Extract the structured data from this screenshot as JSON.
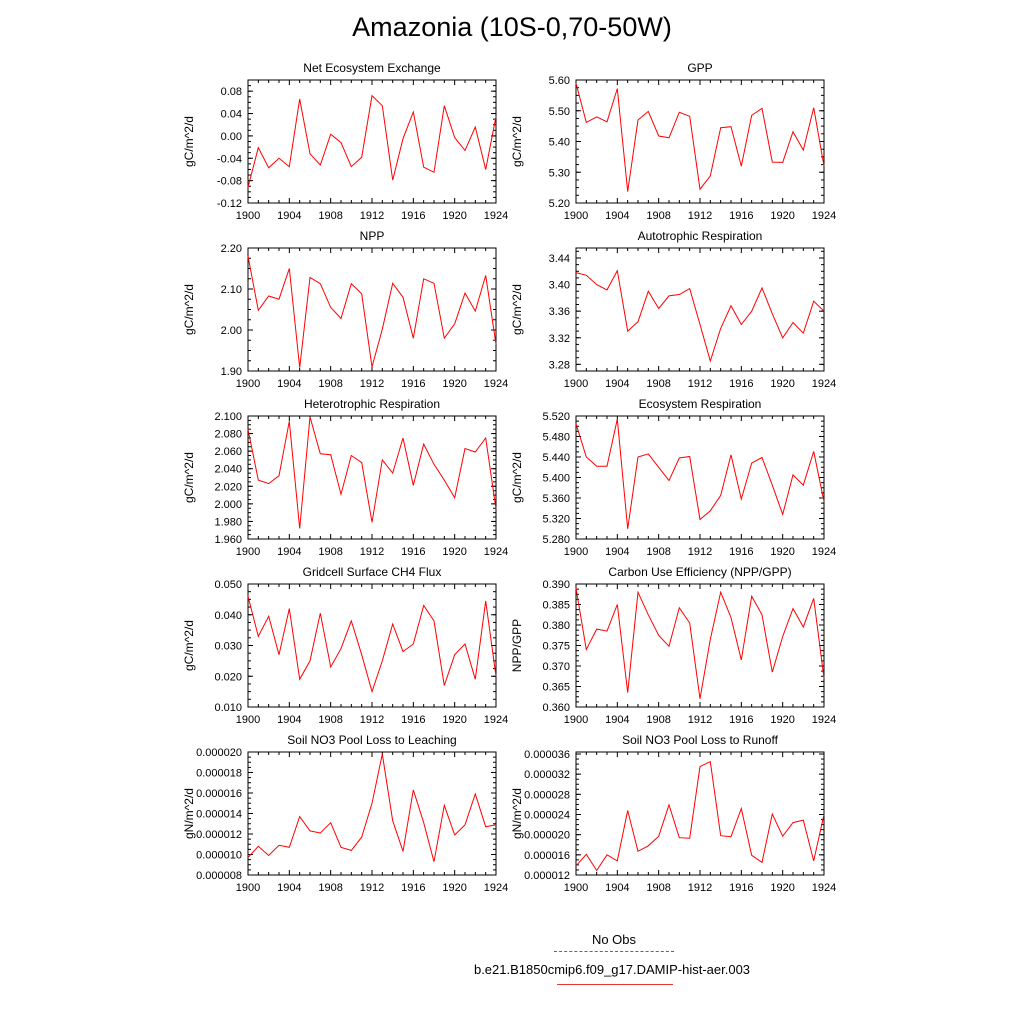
{
  "figure_title": "Amazonia (10S-0,70-50W)",
  "legend": {
    "entries": [
      {
        "label": "No Obs",
        "color": "#5555ee",
        "dash": true
      },
      {
        "label": "b.e21.B1850cmip6.f09_g17.DAMIP-hist-aer.003",
        "color": "#ee3333",
        "dash": false
      }
    ]
  },
  "chart_data": [
    {
      "type": "line",
      "title": "Net Ecosystem Exchange",
      "ylabel": "gC/m^2/d",
      "xlim": [
        1900,
        1924
      ],
      "ylim": [
        -0.12,
        0.1
      ],
      "xticks": [
        "1900",
        "1904",
        "1908",
        "1912",
        "1916",
        "1920",
        "1924"
      ],
      "yticks": [
        "-0.12",
        "-0.08",
        "-0.04",
        "0.00",
        "0.04",
        "0.08"
      ],
      "series": [
        {
          "color": "#ff0000",
          "x": [
            1900,
            1901,
            1902,
            1903,
            1904,
            1905,
            1906,
            1907,
            1908,
            1909,
            1910,
            1911,
            1912,
            1913,
            1914,
            1915,
            1916,
            1917,
            1918,
            1919,
            1920,
            1921,
            1922,
            1923,
            1924
          ],
          "y": [
            -0.092,
            -0.021,
            -0.057,
            -0.04,
            -0.055,
            0.066,
            -0.032,
            -0.052,
            0.003,
            -0.012,
            -0.055,
            -0.038,
            0.072,
            0.054,
            -0.079,
            -0.005,
            0.043,
            -0.056,
            -0.065,
            0.054,
            -0.003,
            -0.026,
            0.016,
            -0.06,
            0.035
          ]
        }
      ]
    },
    {
      "type": "line",
      "title": "GPP",
      "ylabel": "gC/m^2/d",
      "xlim": [
        1900,
        1924
      ],
      "ylim": [
        5.2,
        5.6
      ],
      "xticks": [
        "1900",
        "1904",
        "1908",
        "1912",
        "1916",
        "1920",
        "1924"
      ],
      "yticks": [
        "5.20",
        "5.30",
        "5.40",
        "5.50",
        "5.60"
      ],
      "series": [
        {
          "color": "#ff0000",
          "x": [
            1900,
            1901,
            1902,
            1903,
            1904,
            1905,
            1906,
            1907,
            1908,
            1909,
            1910,
            1911,
            1912,
            1913,
            1914,
            1915,
            1916,
            1917,
            1918,
            1919,
            1920,
            1921,
            1922,
            1923,
            1924
          ],
          "y": [
            5.59,
            5.462,
            5.48,
            5.464,
            5.572,
            5.237,
            5.47,
            5.498,
            5.418,
            5.412,
            5.495,
            5.482,
            5.245,
            5.288,
            5.445,
            5.448,
            5.32,
            5.485,
            5.508,
            5.333,
            5.332,
            5.432,
            5.372,
            5.51,
            5.32
          ]
        }
      ]
    },
    {
      "type": "line",
      "title": "NPP",
      "ylabel": "gC/m^2/d",
      "xlim": [
        1900,
        1924
      ],
      "ylim": [
        1.9,
        2.2
      ],
      "xticks": [
        "1900",
        "1904",
        "1908",
        "1912",
        "1916",
        "1920",
        "1924"
      ],
      "yticks": [
        "1.90",
        "2.00",
        "2.10",
        "2.20"
      ],
      "series": [
        {
          "color": "#ff0000",
          "x": [
            1900,
            1901,
            1902,
            1903,
            1904,
            1905,
            1906,
            1907,
            1908,
            1909,
            1910,
            1911,
            1912,
            1913,
            1914,
            1915,
            1916,
            1917,
            1918,
            1919,
            1920,
            1921,
            1922,
            1923,
            1924
          ],
          "y": [
            2.18,
            2.048,
            2.083,
            2.075,
            2.15,
            1.908,
            2.128,
            2.113,
            2.055,
            2.028,
            2.113,
            2.088,
            1.91,
            2.002,
            2.114,
            2.08,
            1.98,
            2.125,
            2.114,
            1.98,
            2.015,
            2.09,
            2.046,
            2.133,
            1.965
          ]
        }
      ]
    },
    {
      "type": "line",
      "title": "Autotrophic Respiration",
      "ylabel": "gC/m^2/d",
      "xlim": [
        1900,
        1924
      ],
      "ylim": [
        3.27,
        3.455
      ],
      "xticks": [
        "1900",
        "1904",
        "1908",
        "1912",
        "1916",
        "1920",
        "1924"
      ],
      "yticks": [
        "3.28",
        "3.32",
        "3.36",
        "3.40",
        "3.44"
      ],
      "series": [
        {
          "color": "#ff0000",
          "x": [
            1900,
            1901,
            1902,
            1903,
            1904,
            1905,
            1906,
            1907,
            1908,
            1909,
            1910,
            1911,
            1912,
            1913,
            1914,
            1915,
            1916,
            1917,
            1918,
            1919,
            1920,
            1921,
            1922,
            1923,
            1924
          ],
          "y": [
            3.418,
            3.414,
            3.4,
            3.392,
            3.421,
            3.33,
            3.344,
            3.39,
            3.364,
            3.383,
            3.385,
            3.394,
            3.34,
            3.285,
            3.334,
            3.368,
            3.34,
            3.36,
            3.395,
            3.356,
            3.32,
            3.343,
            3.327,
            3.375,
            3.36
          ]
        }
      ]
    },
    {
      "type": "line",
      "title": "Heterotrophic Respiration",
      "ylabel": "gC/m^2/d",
      "xlim": [
        1900,
        1924
      ],
      "ylim": [
        1.96,
        2.1
      ],
      "xticks": [
        "1900",
        "1904",
        "1908",
        "1912",
        "1916",
        "1920",
        "1924"
      ],
      "yticks": [
        "1.960",
        "1.980",
        "2.000",
        "2.020",
        "2.040",
        "2.060",
        "2.080",
        "2.100"
      ],
      "series": [
        {
          "color": "#ff0000",
          "x": [
            1900,
            1901,
            1902,
            1903,
            1904,
            1905,
            1906,
            1907,
            1908,
            1909,
            1910,
            1911,
            1912,
            1913,
            1914,
            1915,
            1916,
            1917,
            1918,
            1919,
            1920,
            1921,
            1922,
            1923,
            1924
          ],
          "y": [
            2.085,
            2.027,
            2.023,
            2.032,
            2.094,
            1.972,
            2.099,
            2.057,
            2.056,
            2.011,
            2.055,
            2.047,
            1.979,
            2.05,
            2.035,
            2.075,
            2.021,
            2.068,
            2.045,
            2.027,
            2.007,
            2.063,
            2.059,
            2.075,
            1.994
          ]
        }
      ]
    },
    {
      "type": "line",
      "title": "Ecosystem Respiration",
      "ylabel": "gC/m^2/d",
      "xlim": [
        1900,
        1924
      ],
      "ylim": [
        5.28,
        5.52
      ],
      "xticks": [
        "1900",
        "1904",
        "1908",
        "1912",
        "1916",
        "1920",
        "1924"
      ],
      "yticks": [
        "5.280",
        "5.320",
        "5.360",
        "5.400",
        "5.440",
        "5.480",
        "5.520"
      ],
      "series": [
        {
          "color": "#ff0000",
          "x": [
            1900,
            1901,
            1902,
            1903,
            1904,
            1905,
            1906,
            1907,
            1908,
            1909,
            1910,
            1911,
            1912,
            1913,
            1914,
            1915,
            1916,
            1917,
            1918,
            1919,
            1920,
            1921,
            1922,
            1923,
            1924
          ],
          "y": [
            5.505,
            5.44,
            5.422,
            5.422,
            5.514,
            5.3,
            5.44,
            5.446,
            5.42,
            5.394,
            5.438,
            5.441,
            5.318,
            5.335,
            5.365,
            5.444,
            5.358,
            5.428,
            5.439,
            5.385,
            5.328,
            5.405,
            5.385,
            5.451,
            5.353
          ]
        }
      ]
    },
    {
      "type": "line",
      "title": "Gridcell Surface CH4 Flux",
      "ylabel": "gC/m^2/d",
      "xlim": [
        1900,
        1924
      ],
      "ylim": [
        0.01,
        0.05
      ],
      "xticks": [
        "1900",
        "1904",
        "1908",
        "1912",
        "1916",
        "1920",
        "1924"
      ],
      "yticks": [
        "0.010",
        "0.020",
        "0.030",
        "0.040",
        "0.050"
      ],
      "series": [
        {
          "color": "#ff0000",
          "x": [
            1900,
            1901,
            1902,
            1903,
            1904,
            1905,
            1906,
            1907,
            1908,
            1909,
            1910,
            1911,
            1912,
            1913,
            1914,
            1915,
            1916,
            1917,
            1918,
            1919,
            1920,
            1921,
            1922,
            1923,
            1924
          ],
          "y": [
            0.046,
            0.033,
            0.0395,
            0.027,
            0.042,
            0.019,
            0.025,
            0.0405,
            0.023,
            0.029,
            0.038,
            0.027,
            0.015,
            0.025,
            0.037,
            0.028,
            0.0305,
            0.043,
            0.038,
            0.017,
            0.027,
            0.0305,
            0.019,
            0.0445,
            0.02
          ]
        }
      ]
    },
    {
      "type": "line",
      "title": "Carbon Use Efficiency (NPP/GPP)",
      "ylabel": "NPP/GPP",
      "xlim": [
        1900,
        1924
      ],
      "ylim": [
        0.36,
        0.39
      ],
      "xticks": [
        "1900",
        "1904",
        "1908",
        "1912",
        "1916",
        "1920",
        "1924"
      ],
      "yticks": [
        "0.360",
        "0.365",
        "0.370",
        "0.375",
        "0.380",
        "0.385",
        "0.390"
      ],
      "series": [
        {
          "color": "#ff0000",
          "x": [
            1900,
            1901,
            1902,
            1903,
            1904,
            1905,
            1906,
            1907,
            1908,
            1909,
            1910,
            1911,
            1912,
            1913,
            1914,
            1915,
            1916,
            1917,
            1918,
            1919,
            1920,
            1921,
            1922,
            1923,
            1924
          ],
          "y": [
            0.389,
            0.374,
            0.379,
            0.3785,
            0.385,
            0.3635,
            0.388,
            0.3825,
            0.3775,
            0.3748,
            0.3842,
            0.3805,
            0.362,
            0.3765,
            0.388,
            0.3818,
            0.3715,
            0.387,
            0.3825,
            0.3685,
            0.3772,
            0.384,
            0.3795,
            0.3865,
            0.367
          ]
        }
      ]
    },
    {
      "type": "line",
      "title": "Soil NO3 Pool Loss to Leaching",
      "ylabel": "gN/m^2/d",
      "xlim": [
        1900,
        1924
      ],
      "ylim": [
        8e-06,
        2e-05
      ],
      "xticks": [
        "1900",
        "1904",
        "1908",
        "1912",
        "1916",
        "1920",
        "1924"
      ],
      "yticks": [
        "0.000008",
        "0.000010",
        "0.000012",
        "0.000014",
        "0.000016",
        "0.000018",
        "0.000020"
      ],
      "series": [
        {
          "color": "#ff0000",
          "x": [
            1900,
            1901,
            1902,
            1903,
            1904,
            1905,
            1906,
            1907,
            1908,
            1909,
            1910,
            1911,
            1912,
            1913,
            1914,
            1915,
            1916,
            1917,
            1918,
            1919,
            1920,
            1921,
            1922,
            1923,
            1924
          ],
          "y": [
            9.7e-06,
            1.08e-05,
            9.9e-06,
            1.09e-05,
            1.07e-05,
            1.37e-05,
            1.23e-05,
            1.21e-05,
            1.31e-05,
            1.07e-05,
            1.04e-05,
            1.17e-05,
            1.5e-05,
            1.98e-05,
            1.33e-05,
            1.03e-05,
            1.63e-05,
            1.31e-05,
            9.3e-06,
            1.48e-05,
            1.19e-05,
            1.29e-05,
            1.59e-05,
            1.27e-05,
            1.29e-05
          ]
        }
      ]
    },
    {
      "type": "line",
      "title": "Soil NO3 Pool Loss to Runoff",
      "ylabel": "gN/m^2/d",
      "xlim": [
        1900,
        1924
      ],
      "ylim": [
        1.2e-05,
        3.64e-05
      ],
      "xticks": [
        "1900",
        "1904",
        "1908",
        "1912",
        "1916",
        "1920",
        "1924"
      ],
      "yticks": [
        "0.000012",
        "0.000016",
        "0.000020",
        "0.000024",
        "0.000028",
        "0.000032",
        "0.000036"
      ],
      "series": [
        {
          "color": "#ff0000",
          "x": [
            1900,
            1901,
            1902,
            1903,
            1904,
            1905,
            1906,
            1907,
            1908,
            1909,
            1910,
            1911,
            1912,
            1913,
            1914,
            1915,
            1916,
            1917,
            1918,
            1919,
            1920,
            1921,
            1922,
            1923,
            1924
          ],
          "y": [
            1.38e-05,
            1.61e-05,
            1.29e-05,
            1.6e-05,
            1.48e-05,
            2.48e-05,
            1.67e-05,
            1.78e-05,
            1.97e-05,
            2.59e-05,
            1.94e-05,
            1.93e-05,
            3.35e-05,
            3.45e-05,
            1.98e-05,
            1.96e-05,
            2.52e-05,
            1.59e-05,
            1.45e-05,
            2.41e-05,
            1.97e-05,
            2.24e-05,
            2.29e-05,
            1.48e-05,
            2.4e-05
          ]
        }
      ]
    }
  ]
}
